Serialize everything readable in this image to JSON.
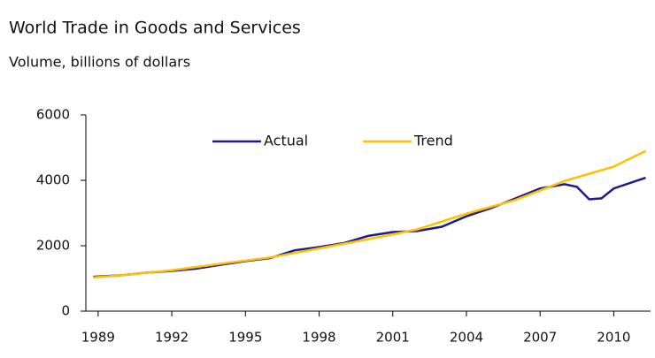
{
  "chart_data": {
    "type": "line",
    "title": "World Trade in Goods and Services",
    "subtitle": "Volume, billions of dollars",
    "series": [
      {
        "name": "Actual",
        "color": "#1c1c8c",
        "x": [
          1988.8,
          1990,
          1991,
          1992,
          1993,
          1994,
          1995,
          1996,
          1997,
          1998,
          1999,
          2000,
          2001,
          2002,
          2003,
          2004,
          2005,
          2006,
          2007,
          2008,
          2008.5,
          2009,
          2009.5,
          2010,
          2011.3
        ],
        "values": [
          1050,
          1100,
          1180,
          1230,
          1300,
          1420,
          1530,
          1620,
          1860,
          1960,
          2080,
          2300,
          2420,
          2450,
          2580,
          2900,
          3150,
          3450,
          3750,
          3880,
          3800,
          3420,
          3450,
          3750,
          4080
        ]
      },
      {
        "name": "Trend",
        "color": "#ffc000",
        "x": [
          1988.8,
          1990,
          1992,
          1994,
          1996,
          1998,
          2000,
          2002,
          2004,
          2006,
          2008,
          2010,
          2011.3
        ],
        "values": [
          1030,
          1100,
          1250,
          1450,
          1640,
          1920,
          2200,
          2500,
          2980,
          3400,
          3980,
          4420,
          4900
        ]
      }
    ],
    "xlim": [
      1988.5,
      2011.5
    ],
    "xticks": [
      1989,
      1992,
      1995,
      1998,
      2001,
      2004,
      2007,
      2010
    ],
    "ylim": [
      0,
      6000
    ],
    "yticks": [
      0,
      2000,
      4000,
      6000
    ],
    "legend": "top"
  }
}
